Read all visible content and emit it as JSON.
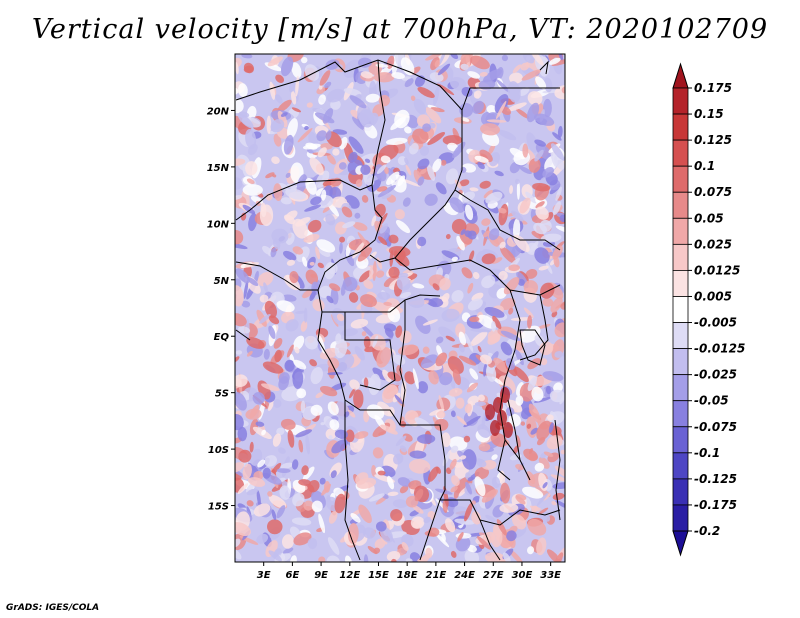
{
  "map": {
    "title": "Vertical velocity [m/s] at 700hPa, VT: 2020102709",
    "footer": "GrADS: IGES/COLA",
    "lat_ticks": [
      "20N",
      "15N",
      "10N",
      "5N",
      "EQ",
      "5S",
      "10S",
      "15S"
    ],
    "lon_ticks": [
      "3E",
      "6E",
      "9E",
      "12E",
      "15E",
      "18E",
      "21E",
      "24E",
      "27E",
      "30E",
      "33E"
    ],
    "lat_range": [
      -20,
      25
    ],
    "lon_range": [
      0,
      34.5
    ],
    "variable": "Vertical velocity",
    "units": "m/s",
    "level": "700hPa",
    "valid_time": "2020102709"
  },
  "colorbar": {
    "labels": [
      "0.175",
      "0.15",
      "0.125",
      "0.1",
      "0.075",
      "0.05",
      "0.025",
      "0.0125",
      "0.005",
      "-0.005",
      "-0.0125",
      "-0.025",
      "-0.05",
      "-0.075",
      "-0.1",
      "-0.125",
      "-0.175",
      "-0.2"
    ],
    "colors": [
      "#a0141e",
      "#b4232a",
      "#c83737",
      "#d55050",
      "#de6b6b",
      "#e78a8a",
      "#f0a8a8",
      "#f7c8c8",
      "#fbe3e3",
      "#ffffff",
      "#dedcf5",
      "#c2beef",
      "#a49ee8",
      "#8880e0",
      "#6a62d4",
      "#4e46c4",
      "#3a30b4",
      "#2a1ea4",
      "#1c0e96"
    ]
  }
}
